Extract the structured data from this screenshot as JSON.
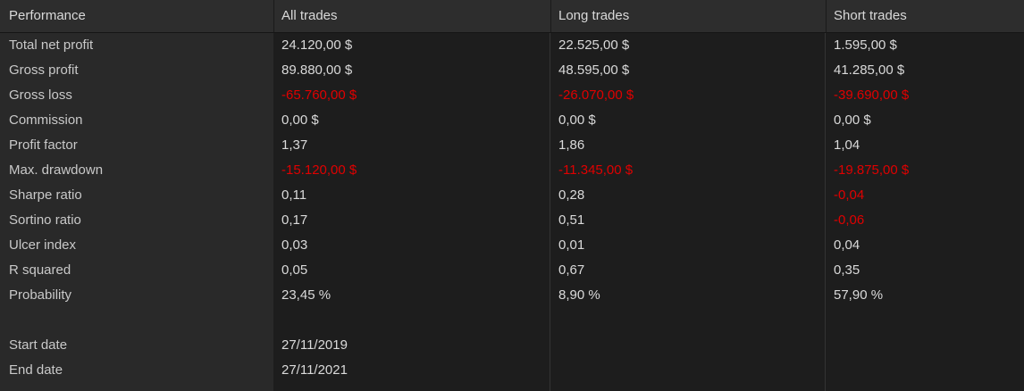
{
  "table": {
    "columns": [
      {
        "label": "Performance"
      },
      {
        "label": "All trades"
      },
      {
        "label": "Long trades"
      },
      {
        "label": "Short trades"
      }
    ],
    "rows": [
      {
        "label": "Total net profit",
        "values": [
          "24.120,00 $",
          "22.525,00 $",
          "1.595,00 $"
        ]
      },
      {
        "label": "Gross profit",
        "values": [
          "89.880,00 $",
          "48.595,00 $",
          "41.285,00 $"
        ]
      },
      {
        "label": "Gross loss",
        "values": [
          "-65.760,00 $",
          "-26.070,00 $",
          "-39.690,00 $"
        ]
      },
      {
        "label": "Commission",
        "values": [
          "0,00 $",
          "0,00 $",
          "0,00 $"
        ]
      },
      {
        "label": "Profit factor",
        "values": [
          "1,37",
          "1,86",
          "1,04"
        ]
      },
      {
        "label": "Max. drawdown",
        "values": [
          "-15.120,00 $",
          "-11.345,00 $",
          "-19.875,00 $"
        ]
      },
      {
        "label": "Sharpe ratio",
        "values": [
          "0,11",
          "0,28",
          "-0,04"
        ]
      },
      {
        "label": "Sortino ratio",
        "values": [
          "0,17",
          "0,51",
          "-0,06"
        ]
      },
      {
        "label": "Ulcer index",
        "values": [
          "0,03",
          "0,01",
          "0,04"
        ]
      },
      {
        "label": "R squared",
        "values": [
          "0,05",
          "0,67",
          "0,35"
        ]
      },
      {
        "label": "Probability",
        "values": [
          "23,45 %",
          "8,90 %",
          "57,90 %"
        ]
      },
      {
        "label": "",
        "values": [
          "",
          "",
          ""
        ]
      },
      {
        "label": "Start date",
        "values": [
          "27/11/2019",
          "",
          ""
        ]
      },
      {
        "label": "End date",
        "values": [
          "27/11/2021",
          "",
          ""
        ]
      }
    ]
  },
  "colors": {
    "negative_value": "#e00000",
    "header_bg": "#2d2d2d",
    "label_column_bg": "#292929",
    "body_bg": "#1d1d1d",
    "value_text": "#dadada",
    "label_text": "#c9c9c9",
    "divider": "#343434"
  }
}
